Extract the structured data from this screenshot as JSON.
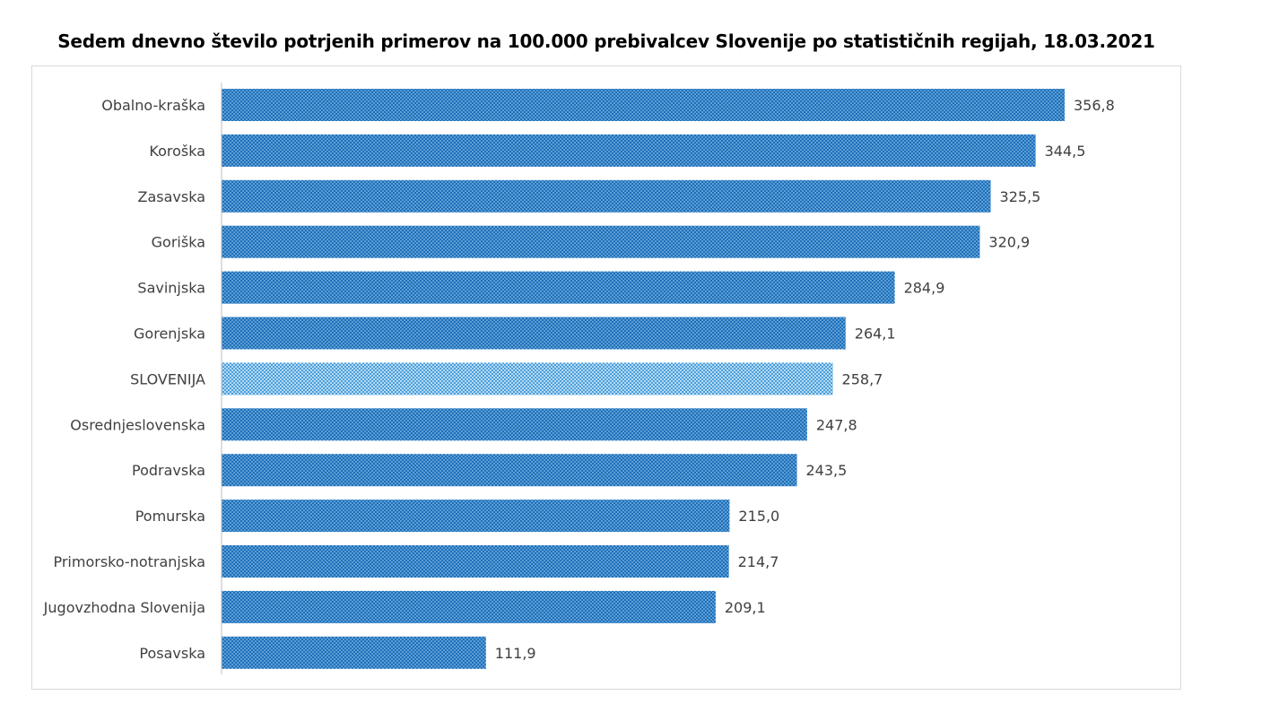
{
  "colors": {
    "bar_fill": "#1f6fb8",
    "bar_dots": "#8ec5ef",
    "highlight_fill": "#4a9fdc",
    "highlight_dots": "#e4f2fc",
    "axis": "#bfbfbf",
    "label_text": "#404040",
    "frame": "#d9d9d9"
  },
  "chart_data": {
    "type": "bar",
    "orientation": "horizontal",
    "title": "Sedem dnevno število potrjenih primerov na 100.000 prebivalcev Slovenije po statističnih regijah, 18.03.2021",
    "categories": [
      "Obalno-kraška",
      "Koroška",
      "Zasavska",
      "Goriška",
      "Savinjska",
      "Gorenjska",
      "SLOVENIJA",
      "Osrednjeslovenska",
      "Podravska",
      "Pomurska",
      "Primorsko-notranjska",
      "Jugovzhodna Slovenija",
      "Posavska"
    ],
    "values": [
      356.8,
      344.5,
      325.5,
      320.9,
      284.9,
      264.1,
      258.7,
      247.8,
      243.5,
      215.0,
      214.7,
      209.1,
      111.9
    ],
    "value_labels": [
      "356,8",
      "344,5",
      "325,5",
      "320,9",
      "284,9",
      "264,1",
      "258,7",
      "247,8",
      "243,5",
      "215,0",
      "214,7",
      "209,1",
      "111,9"
    ],
    "highlight_category": "SLOVENIJA",
    "xlabel": "",
    "ylabel": "",
    "xlim": [
      0,
      356.8
    ],
    "grid": false,
    "legend": "none",
    "data_labels": true
  }
}
